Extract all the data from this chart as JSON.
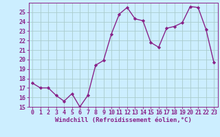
{
  "x": [
    0,
    1,
    2,
    3,
    4,
    5,
    6,
    7,
    8,
    9,
    10,
    11,
    12,
    13,
    14,
    15,
    16,
    17,
    18,
    19,
    20,
    21,
    22,
    23
  ],
  "y": [
    17.5,
    17.0,
    17.0,
    16.2,
    15.6,
    16.4,
    15.0,
    16.2,
    19.4,
    19.9,
    22.7,
    24.8,
    25.5,
    24.3,
    24.1,
    21.8,
    21.3,
    23.3,
    23.5,
    23.9,
    25.6,
    25.5,
    23.2,
    19.7
  ],
  "line_color": "#882288",
  "marker": "D",
  "markersize": 2.2,
  "linewidth": 1.0,
  "bg_color": "#cceeff",
  "grid_color": "#aacccc",
  "xlabel": "Windchill (Refroidissement éolien,°C)",
  "xlabel_fontsize": 6.5,
  "tick_fontsize": 6.0,
  "xlim": [
    -0.5,
    23.5
  ],
  "ylim": [
    15,
    26
  ],
  "yticks": [
    15,
    16,
    17,
    18,
    19,
    20,
    21,
    22,
    23,
    24,
    25
  ],
  "xticks": [
    0,
    1,
    2,
    3,
    4,
    5,
    6,
    7,
    8,
    9,
    10,
    11,
    12,
    13,
    14,
    15,
    16,
    17,
    18,
    19,
    20,
    21,
    22,
    23
  ]
}
